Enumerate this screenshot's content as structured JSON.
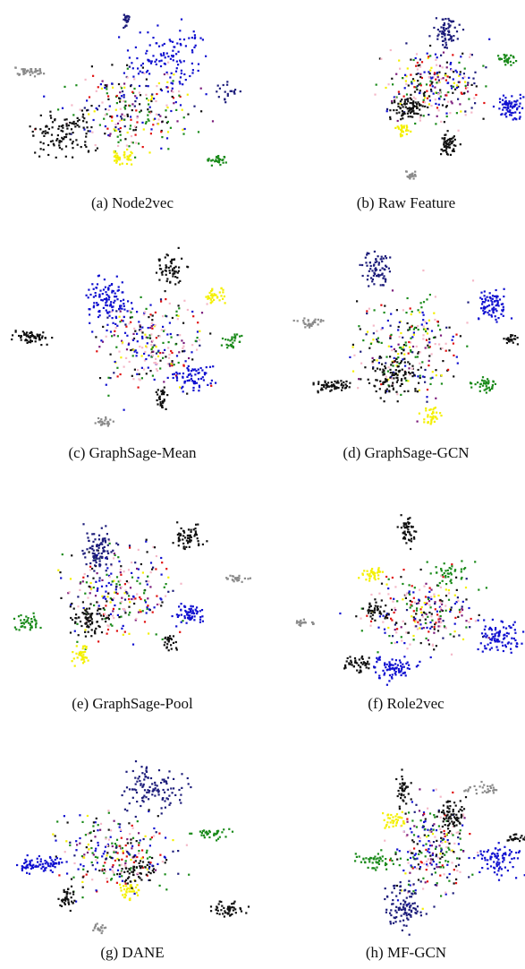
{
  "captions": [
    "(a) Node2vec",
    "(b) Raw Feature",
    "(c) GraphSage-Mean",
    "(d) GraphSage-GCN",
    "(e) GraphSage-Pool",
    "(f) Role2vec",
    "(g) DANE",
    "(h) MF-GCN"
  ]
}
